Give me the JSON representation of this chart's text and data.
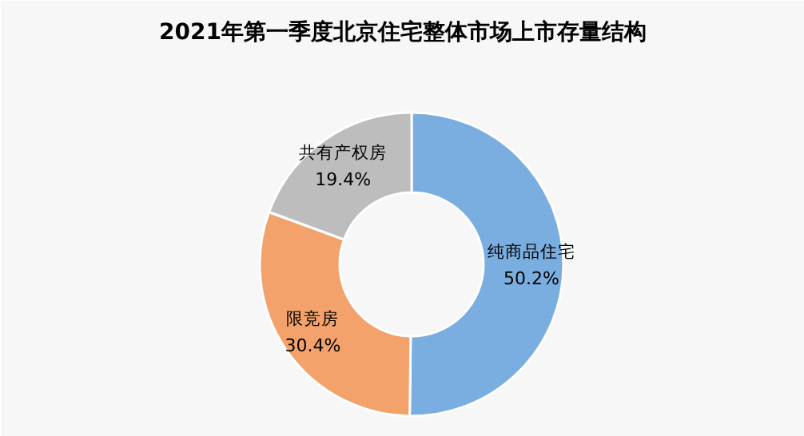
{
  "chart_data": {
    "type": "donut",
    "title": "2021年第一季度北京住宅整体市场上市存量结构",
    "categories": [
      "纯商品住宅",
      "限竞房",
      "共有产权房"
    ],
    "values": [
      50.2,
      30.4,
      19.4
    ],
    "colors": [
      "#7aaee0",
      "#f2a26a",
      "#bdbdbd"
    ],
    "value_labels": [
      "50.2%",
      "30.4%",
      "19.4%"
    ]
  }
}
